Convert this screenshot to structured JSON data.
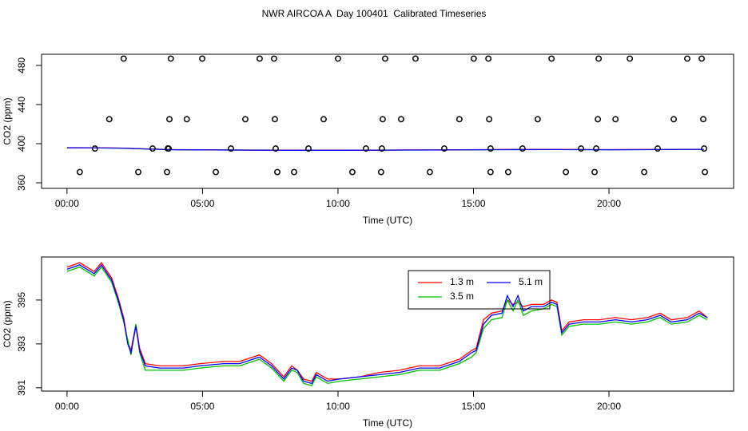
{
  "title": "NWR AIRCOA A  Day 100401  Calibrated Timeseries",
  "chart_data": [
    {
      "type": "line",
      "xlabel": "Time (UTC)",
      "ylabel": "CO2 (ppm)",
      "xlim": [
        -0.94,
        24.6
      ],
      "ylim": [
        354.3,
        491.4
      ],
      "xticks": [
        {
          "value": 0,
          "label": "00:00"
        },
        {
          "value": 5,
          "label": "05:00"
        },
        {
          "value": 10,
          "label": "10:00"
        },
        {
          "value": 15,
          "label": "15:00"
        },
        {
          "value": 20,
          "label": "20:00"
        }
      ],
      "yticks": [
        360,
        400,
        440,
        480
      ],
      "x": [
        0,
        1,
        2,
        3,
        4,
        6,
        8,
        10,
        12,
        14,
        16,
        18,
        20,
        22,
        23.5
      ],
      "series": [
        {
          "color": "#00c000",
          "values": [
            395.8,
            395.8,
            395.4,
            394.5,
            393.8,
            393.5,
            393.2,
            393.2,
            393.4,
            393.6,
            393.9,
            394.0,
            393.8,
            394.0,
            394.1
          ]
        },
        {
          "color": "#ff0000",
          "values": [
            395.9,
            395.8,
            395.5,
            394.6,
            393.9,
            393.6,
            393.3,
            393.3,
            393.5,
            393.7,
            394.0,
            394.1,
            393.9,
            394.1,
            394.2
          ]
        },
        {
          "color": "#0000ff",
          "values": [
            395.8,
            395.7,
            395.4,
            394.5,
            393.8,
            393.5,
            393.2,
            393.2,
            393.4,
            393.6,
            393.9,
            394.0,
            393.8,
            394.0,
            394.2
          ]
        }
      ],
      "points": {
        "color": "#000000",
        "x": [
          2.09,
          3.83,
          4.99,
          7.11,
          7.64,
          10.0,
          11.74,
          12.86,
          15.01,
          15.55,
          17.88,
          19.62,
          20.77,
          22.89,
          23.42,
          1.56,
          3.78,
          4.42,
          6.58,
          7.67,
          9.47,
          11.65,
          12.33,
          14.48,
          15.58,
          17.37,
          19.59,
          20.24,
          22.39,
          23.48,
          1.03,
          3.16,
          3.72,
          3.75,
          6.05,
          7.7,
          8.91,
          11.03,
          11.62,
          13.92,
          15.63,
          16.81,
          18.97,
          19.53,
          21.8,
          23.51,
          0.47,
          2.63,
          3.69,
          5.49,
          7.76,
          8.38,
          10.53,
          11.59,
          13.39,
          15.63,
          16.28,
          18.41,
          19.47,
          21.3,
          23.54
        ],
        "values": [
          487,
          487,
          487,
          487,
          487,
          487,
          487,
          487,
          487,
          487,
          487,
          487,
          487,
          487,
          487,
          425,
          425,
          425,
          425,
          425,
          425,
          425,
          425,
          425,
          425,
          425,
          425,
          425,
          425,
          425,
          395,
          395,
          395,
          395,
          395,
          395,
          395,
          395,
          395,
          395,
          395,
          395,
          395,
          395,
          395,
          395,
          371,
          371,
          371,
          371,
          371,
          371,
          371,
          371,
          371,
          371,
          371,
          371,
          371,
          371,
          371
        ]
      }
    },
    {
      "type": "line",
      "xlabel": "Time (UTC)",
      "ylabel": "CO2 (ppm)",
      "xlim": [
        -0.94,
        24.6
      ],
      "ylim": [
        390.85,
        396.96
      ],
      "xticks": [
        {
          "value": 0,
          "label": "00:00"
        },
        {
          "value": 5,
          "label": "05:00"
        },
        {
          "value": 10,
          "label": "10:00"
        },
        {
          "value": 15,
          "label": "15:00"
        },
        {
          "value": 20,
          "label": "20:00"
        }
      ],
      "yticks": [
        391,
        393,
        395
      ],
      "legend": "top",
      "x": [
        0,
        0.47,
        1.0,
        1.27,
        1.65,
        1.89,
        2.09,
        2.24,
        2.36,
        2.54,
        2.68,
        2.89,
        3.42,
        4.3,
        4.9,
        5.78,
        6.37,
        7.1,
        7.55,
        8.0,
        8.29,
        8.5,
        8.73,
        9.03,
        9.2,
        9.62,
        10.06,
        10.8,
        11.53,
        12.27,
        13.0,
        13.75,
        14.48,
        14.93,
        15.1,
        15.37,
        15.66,
        16.05,
        16.25,
        16.46,
        16.64,
        16.84,
        17.14,
        17.58,
        17.88,
        18.08,
        18.26,
        18.53,
        19.06,
        19.65,
        20.24,
        20.83,
        21.42,
        21.89,
        22.3,
        22.89,
        23.33,
        23.63
      ],
      "series": [
        {
          "name": "1.3 m",
          "color": "#ff0000",
          "values": [
            396.5,
            396.7,
            396.3,
            396.7,
            396.0,
            395.1,
            394.2,
            393.1,
            392.7,
            393.9,
            392.8,
            392.1,
            392.0,
            392.0,
            392.1,
            392.2,
            392.2,
            392.5,
            392.1,
            391.5,
            392.0,
            391.8,
            391.4,
            391.3,
            391.7,
            391.4,
            391.4,
            391.5,
            391.7,
            391.8,
            392.0,
            392.0,
            392.3,
            392.7,
            392.8,
            394.1,
            394.4,
            394.5,
            395.0,
            394.8,
            394.9,
            394.7,
            394.8,
            394.8,
            395.0,
            394.9,
            393.6,
            394.0,
            394.1,
            394.1,
            394.2,
            394.1,
            394.2,
            394.4,
            394.1,
            394.2,
            394.5,
            394.2
          ]
        },
        {
          "name": "3.5 m",
          "color": "#00c000",
          "values": [
            396.3,
            396.5,
            396.1,
            396.5,
            395.8,
            394.9,
            394.0,
            393.2,
            392.5,
            393.9,
            392.6,
            391.8,
            391.8,
            391.8,
            391.9,
            392.0,
            392.0,
            392.3,
            391.9,
            391.3,
            391.8,
            391.7,
            391.2,
            391.1,
            391.5,
            391.2,
            391.3,
            391.4,
            391.5,
            391.6,
            391.8,
            391.8,
            392.1,
            392.4,
            392.6,
            393.7,
            394.1,
            394.2,
            395.0,
            394.5,
            395.0,
            394.3,
            394.5,
            394.6,
            394.8,
            394.7,
            393.4,
            393.8,
            393.9,
            393.9,
            394.0,
            393.9,
            394.0,
            394.2,
            393.9,
            394.0,
            394.3,
            394.1
          ]
        },
        {
          "name": "5.1 m",
          "color": "#0000ff",
          "values": [
            396.4,
            396.6,
            396.2,
            396.6,
            395.9,
            395.0,
            394.1,
            393.0,
            392.6,
            393.8,
            392.7,
            392.0,
            391.9,
            391.9,
            392.0,
            392.1,
            392.1,
            392.4,
            392.0,
            391.4,
            391.9,
            391.8,
            391.3,
            391.2,
            391.6,
            391.3,
            391.4,
            391.5,
            391.6,
            391.7,
            391.9,
            391.9,
            392.2,
            392.6,
            392.7,
            393.9,
            394.3,
            394.4,
            395.2,
            394.7,
            395.2,
            394.5,
            394.7,
            394.7,
            394.9,
            394.8,
            393.5,
            393.9,
            394.0,
            394.0,
            394.1,
            394.0,
            394.1,
            394.3,
            394.0,
            394.1,
            394.4,
            394.2
          ]
        }
      ]
    }
  ]
}
